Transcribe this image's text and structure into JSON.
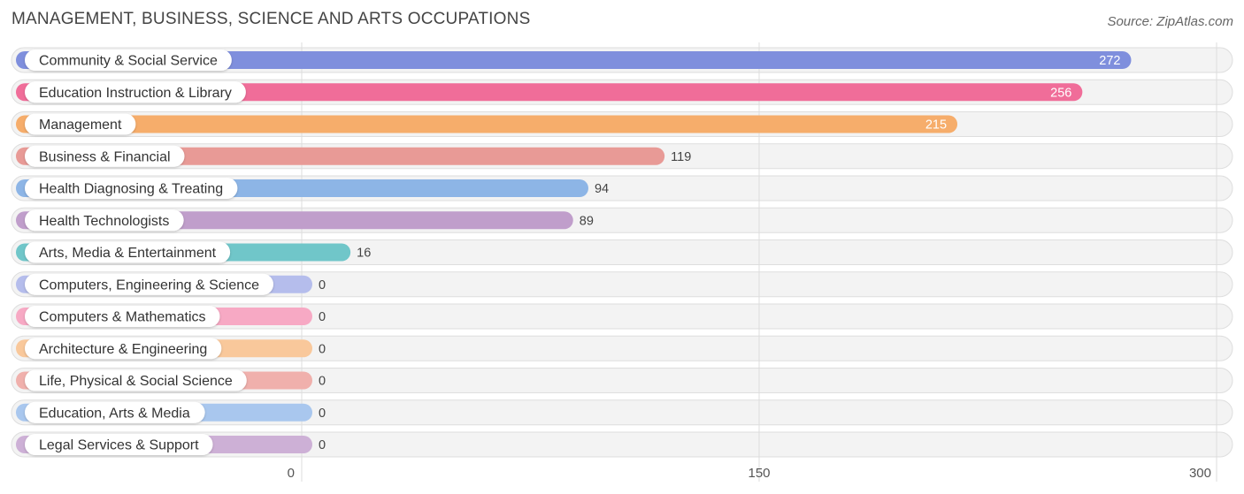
{
  "chart_data": {
    "type": "bar",
    "orientation": "horizontal",
    "title": "MANAGEMENT, BUSINESS, SCIENCE AND ARTS OCCUPATIONS",
    "source": "Source: ZipAtlas.com",
    "xlim": [
      0,
      300
    ],
    "ticks": [
      "0",
      "150",
      "300"
    ],
    "tick_values": [
      0,
      150,
      300
    ],
    "categories": [
      "Community & Social Service",
      "Education Instruction & Library",
      "Management",
      "Business & Financial",
      "Health Diagnosing & Treating",
      "Health Technologists",
      "Arts, Media & Entertainment",
      "Computers, Engineering & Science",
      "Computers & Mathematics",
      "Architecture & Engineering",
      "Life, Physical & Social Science",
      "Education, Arts & Media",
      "Legal Services & Support"
    ],
    "values": [
      272,
      256,
      215,
      119,
      94,
      89,
      16,
      0,
      0,
      0,
      0,
      0,
      0
    ],
    "value_labels": [
      "272",
      "256",
      "215",
      "119",
      "94",
      "89",
      "16",
      "0",
      "0",
      "0",
      "0",
      "0",
      "0"
    ],
    "colors": [
      "#7f8fdd",
      "#f06d99",
      "#f6ad6b",
      "#e89a96",
      "#8db5e6",
      "#c09ecb",
      "#70c6c9",
      "#b5bdec",
      "#f7a9c4",
      "#f9c89b",
      "#f0b0ac",
      "#a9c7ee",
      "#cdb0d6"
    ]
  }
}
